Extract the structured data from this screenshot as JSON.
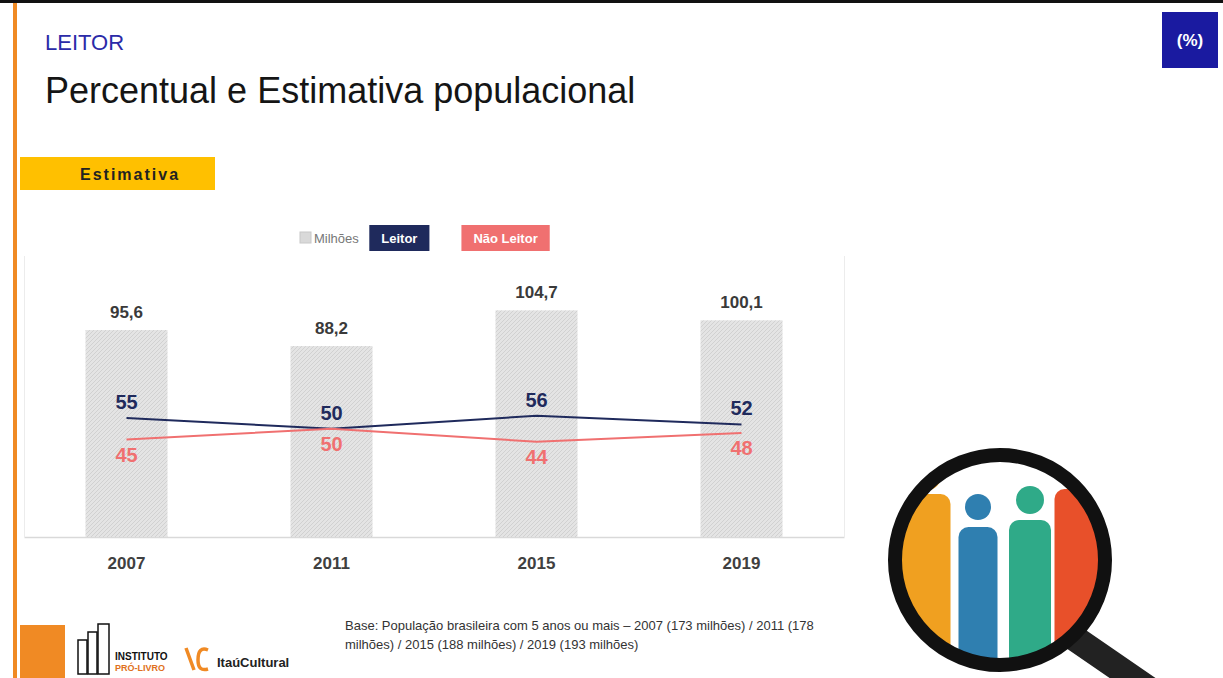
{
  "chart_data": {
    "type": "bar",
    "subtitle": "LEITOR",
    "title": "Percentual e Estimativa populacional",
    "annotations": [
      "(%)",
      "Estimativa",
      "Base: População brasileira com 5 anos ou mais – 2007 (173 milhões) / 2011 (178 milhões) / 2015 (188 milhões) / 2019 (193 milhões)",
      "INSTITUTO",
      "PRÓ-LIVRO",
      "ItaúCultural"
    ],
    "categories": [
      "2007",
      "2011",
      "2015",
      "2019"
    ],
    "series": [
      {
        "name": "Milhões",
        "type": "bar",
        "color": "#e4e4e4",
        "values": [
          95.6,
          88.2,
          104.7,
          100.1
        ],
        "value_labels": [
          "95,6",
          "88,2",
          "104,7",
          "100,1"
        ]
      },
      {
        "name": "Leitor",
        "type": "line",
        "axis": "y2",
        "color": "#1f2a5c",
        "values": [
          55,
          50,
          56,
          52
        ]
      },
      {
        "name": "Não Leitor",
        "type": "line",
        "axis": "y2",
        "color": "#f07070",
        "values": [
          45,
          50,
          44,
          48
        ]
      }
    ],
    "ylim": [
      0,
      130
    ],
    "yticks": [],
    "y2lim": [
      0,
      130
    ],
    "y2ticks": [],
    "tick_labels": "x",
    "data_labels": true,
    "legend": "top",
    "grid": false
  }
}
